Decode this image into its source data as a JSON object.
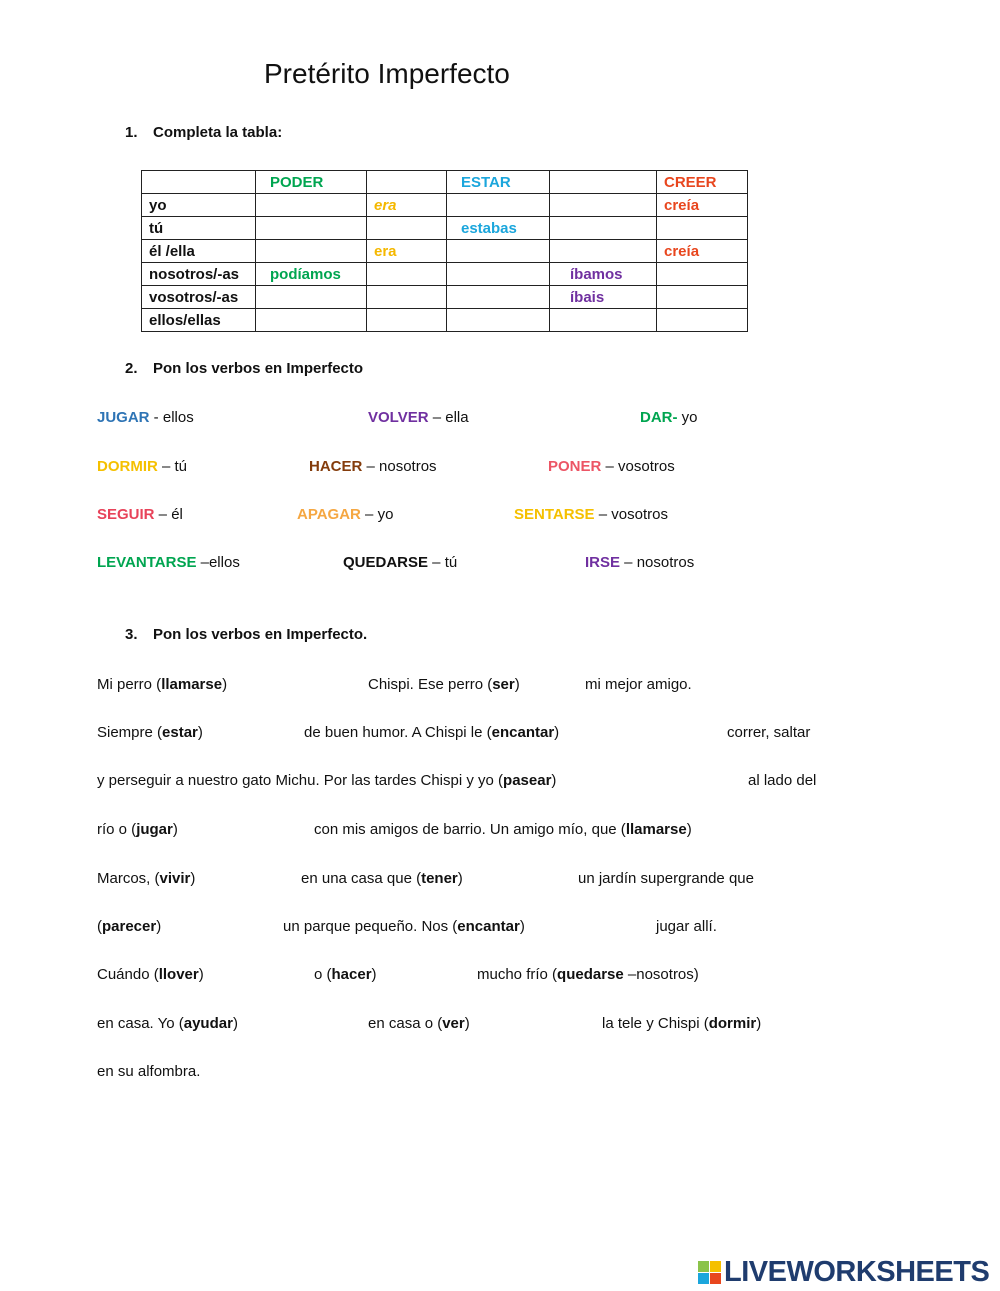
{
  "title": "Pretérito Imperfecto",
  "section1": {
    "number": "1.",
    "heading": "Completa la tabla:"
  },
  "table": {
    "header": [
      {
        "t": "",
        "c": ""
      },
      {
        "t": "PODER",
        "c": "#00a550"
      },
      {
        "t": "",
        "c": ""
      },
      {
        "t": "ESTAR",
        "c": "#1ba6dc"
      },
      {
        "t": "",
        "c": ""
      },
      {
        "t": "CREER",
        "c": "#e8461e"
      }
    ],
    "rows": [
      [
        {
          "t": "yo",
          "c": "#111"
        },
        {
          "t": "",
          "c": ""
        },
        {
          "t": "era",
          "c": "#f5b800",
          "i": true
        },
        {
          "t": "",
          "c": ""
        },
        {
          "t": "",
          "c": ""
        },
        {
          "t": "creía",
          "c": "#e8461e"
        }
      ],
      [
        {
          "t": "tú",
          "c": "#111"
        },
        {
          "t": "",
          "c": ""
        },
        {
          "t": "",
          "c": ""
        },
        {
          "t": "estabas",
          "c": "#1ba6dc"
        },
        {
          "t": "",
          "c": ""
        },
        {
          "t": "",
          "c": ""
        }
      ],
      [
        {
          "t": "él /ella",
          "c": "#111"
        },
        {
          "t": "",
          "c": ""
        },
        {
          "t": "era",
          "c": "#f5b800"
        },
        {
          "t": "",
          "c": ""
        },
        {
          "t": "",
          "c": ""
        },
        {
          "t": "creía",
          "c": "#e8461e"
        }
      ],
      [
        {
          "t": "nosotros/-as",
          "c": "#111"
        },
        {
          "t": "podíamos",
          "c": "#00a550"
        },
        {
          "t": "",
          "c": ""
        },
        {
          "t": "",
          "c": ""
        },
        {
          "t": "íbamos",
          "c": "#7030a0"
        },
        {
          "t": "",
          "c": ""
        }
      ],
      [
        {
          "t": "vosotros/-as",
          "c": "#111"
        },
        {
          "t": "",
          "c": ""
        },
        {
          "t": "",
          "c": ""
        },
        {
          "t": "",
          "c": ""
        },
        {
          "t": "íbais",
          "c": "#7030a0"
        },
        {
          "t": "",
          "c": ""
        }
      ],
      [
        {
          "t": "ellos/ellas",
          "c": "#111"
        },
        {
          "t": "",
          "c": ""
        },
        {
          "t": "",
          "c": ""
        },
        {
          "t": "",
          "c": ""
        },
        {
          "t": "",
          "c": ""
        },
        {
          "t": "",
          "c": ""
        }
      ]
    ]
  },
  "section2": {
    "number": "2.",
    "heading": "Pon los verbos en Imperfecto",
    "items": [
      {
        "verb": "JUGAR",
        "rest": " - ellos",
        "color": "#2e74b5"
      },
      {
        "verb": "VOLVER",
        "rest": " – ella",
        "color": "#7030a0"
      },
      {
        "verb": "DAR-",
        "rest": " yo",
        "color": "#00a550"
      },
      {
        "verb": "DORMIR",
        "rest": " – tú",
        "color": "#f5c000"
      },
      {
        "verb": "HACER",
        "rest": " – nosotros",
        "color": "#843c0c"
      },
      {
        "verb": "PONER",
        "rest": " – vosotros",
        "color": "#ec5565"
      },
      {
        "verb": "SEGUIR",
        "rest": " – él",
        "color": "#e8435a"
      },
      {
        "verb": "APAGAR",
        "rest": " – yo",
        "color": "#f5a742"
      },
      {
        "verb": "SENTARSE",
        "rest": " – vosotros",
        "color": "#f5c000"
      },
      {
        "verb": "LEVANTARSE",
        "rest": " –ellos",
        "color": "#00a550"
      },
      {
        "verb": "QUEDARSE",
        "rest": " – tú",
        "color": "#111111"
      },
      {
        "verb": "IRSE",
        "rest": " – nosotros",
        "color": "#7030a0"
      }
    ]
  },
  "section3": {
    "number": "3.",
    "heading": "Pon los verbos en Imperfecto.",
    "lines": [
      [
        [
          {
            "t": "Mi perro  ("
          },
          {
            "t": "llamarse",
            "b": true
          },
          {
            "t": ")"
          }
        ],
        [
          {
            "t": "Chispi. Ese perro  ("
          },
          {
            "t": "ser",
            "b": true
          },
          {
            "t": ")"
          }
        ],
        [
          {
            "t": "mi mejor amigo."
          }
        ]
      ],
      [
        [
          {
            "t": "Siempre  ("
          },
          {
            "t": "estar",
            "b": true
          },
          {
            "t": ")"
          }
        ],
        [
          {
            "t": "de buen humor. A Chispi le ("
          },
          {
            "t": "encantar",
            "b": true
          },
          {
            "t": ")"
          }
        ],
        [
          {
            "t": "correr, saltar"
          }
        ]
      ],
      [
        [
          {
            "t": "y  perseguir a nuestro gato Michu.   Por las tardes Chispi y yo ("
          },
          {
            "t": "pasear",
            "b": true
          },
          {
            "t": ")"
          }
        ],
        [
          {
            "t": "al lado del"
          }
        ]
      ],
      [
        [
          {
            "t": "río o ("
          },
          {
            "t": "jugar",
            "b": true
          },
          {
            "t": ")"
          }
        ],
        [
          {
            "t": "con mis  amigos de barrio. Un amigo mío, que ("
          },
          {
            "t": "llamarse",
            "b": true
          },
          {
            "t": ")"
          }
        ]
      ],
      [
        [
          {
            "t": "Marcos, ("
          },
          {
            "t": "vivir",
            "b": true
          },
          {
            "t": ")"
          }
        ],
        [
          {
            "t": "en una casa  que ("
          },
          {
            "t": "tener",
            "b": true
          },
          {
            "t": ")"
          }
        ],
        [
          {
            "t": "un jardín supergrande que"
          }
        ]
      ],
      [
        [
          {
            "t": "("
          },
          {
            "t": "parecer",
            "b": true
          },
          {
            "t": ")"
          }
        ],
        [
          {
            "t": "un parque pequeño.  Nos ("
          },
          {
            "t": "encantar",
            "b": true
          },
          {
            "t": ")"
          }
        ],
        [
          {
            "t": "jugar allí."
          }
        ]
      ],
      [
        [
          {
            "t": "Cuándo ("
          },
          {
            "t": "llover",
            "b": true
          },
          {
            "t": ")"
          }
        ],
        [
          {
            "t": "o ("
          },
          {
            "t": "hacer",
            "b": true
          },
          {
            "t": ")"
          }
        ],
        [
          {
            "t": "mucho frío ("
          },
          {
            "t": "quedarse",
            "b": true
          },
          {
            "t": " –nosotros)"
          }
        ]
      ],
      [
        [
          {
            "t": "en casa. Yo ("
          },
          {
            "t": "ayudar",
            "b": true
          },
          {
            "t": ")"
          }
        ],
        [
          {
            "t": "en casa o ("
          },
          {
            "t": "ver",
            "b": true
          },
          {
            "t": ")"
          }
        ],
        [
          {
            "t": "la tele y Chispi  ("
          },
          {
            "t": "dormir",
            "b": true
          },
          {
            "t": ")"
          }
        ]
      ],
      [
        [
          {
            "t": "en su alfombra."
          }
        ]
      ]
    ]
  },
  "logo": {
    "text": "LIVEWORKSHEETS",
    "blocks": [
      "L",
      "I",
      "V",
      "E"
    ],
    "color": "#1f3c6e"
  }
}
